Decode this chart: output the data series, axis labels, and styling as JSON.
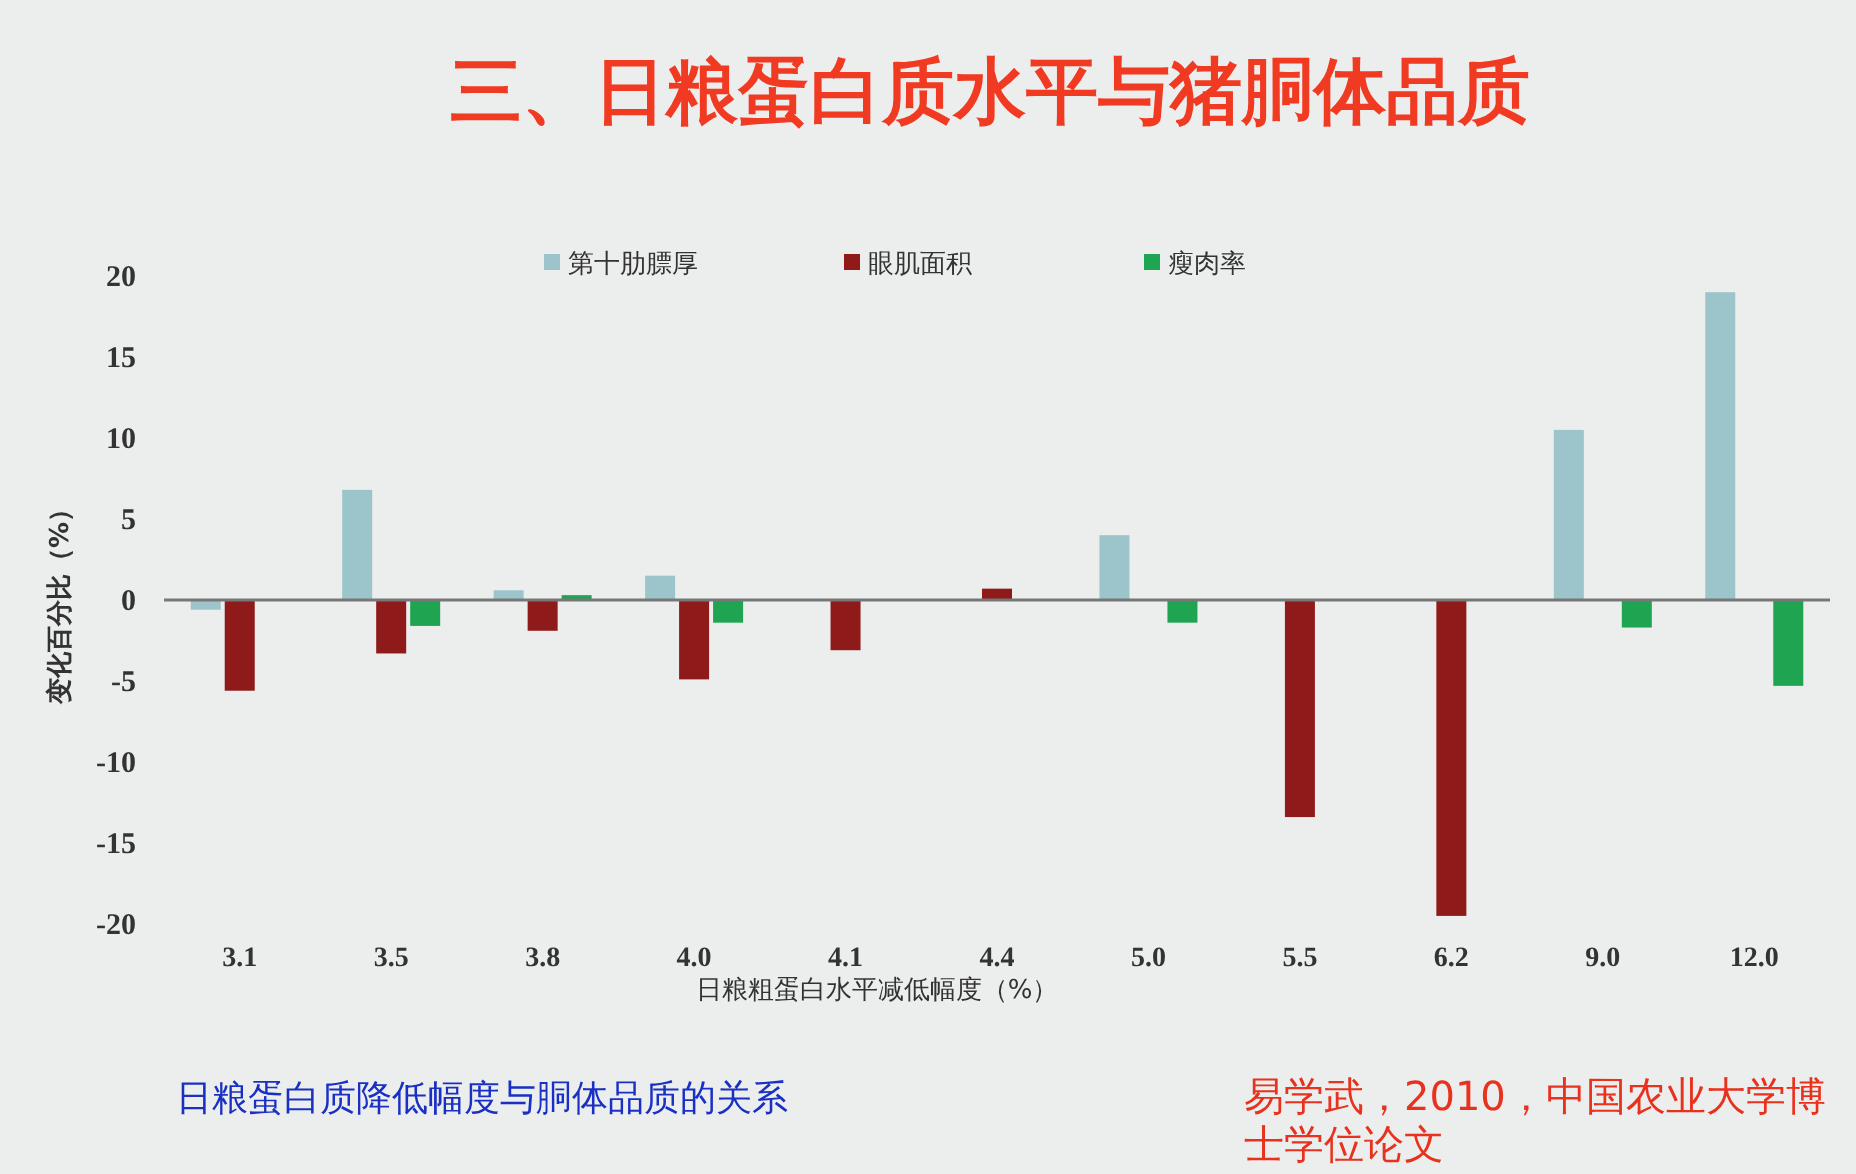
{
  "chart_data": {
    "type": "bar",
    "title": "三、日粮蛋白质水平与猪胴体品质",
    "xlabel": "日粮粗蛋白水平减低幅度（%）",
    "ylabel": "变化百分比（%）",
    "categories": [
      "3.1",
      "3.5",
      "3.8",
      "4.0",
      "4.1",
      "4.4",
      "5.0",
      "5.5",
      "6.2",
      "9.0",
      "12.0"
    ],
    "series": [
      {
        "name": "第十肋膘厚",
        "color": "#9cc4cb",
        "values": [
          -0.6,
          6.8,
          0.6,
          1.5,
          null,
          null,
          4.0,
          null,
          null,
          10.5,
          19
        ]
      },
      {
        "name": "眼肌面积",
        "color": "#8e1a1a",
        "values": [
          -5.6,
          -3.3,
          -1.9,
          -4.9,
          -3.1,
          0.7,
          null,
          -13.4,
          -19.5,
          null,
          null
        ]
      },
      {
        "name": "瘦肉率",
        "color": "#1fa552",
        "values": [
          null,
          -1.6,
          0.3,
          -1.4,
          null,
          null,
          -1.4,
          null,
          null,
          -1.7,
          -5.3
        ]
      }
    ],
    "ylim": [
      -20,
      20
    ],
    "yticks": [
      20,
      15,
      10,
      5,
      0,
      -5,
      -10,
      -15,
      -20
    ],
    "legend": "top",
    "annotations": [
      "日粮蛋白质降低幅度与胴体品质的关系",
      "易学武，2010，中国农业大学博士学位论文"
    ]
  }
}
